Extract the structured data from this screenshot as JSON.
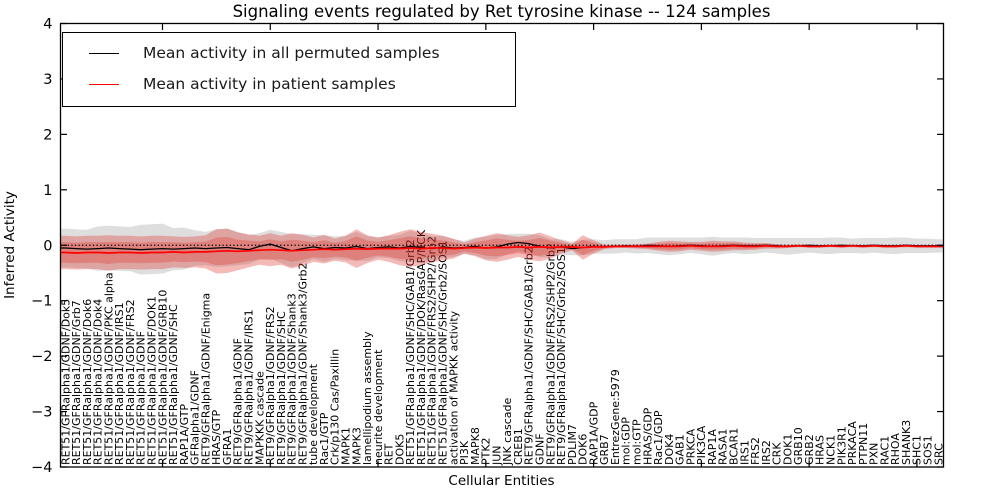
{
  "title": "Signaling events regulated by Ret tyrosine kinase -- 124 samples",
  "x_axis": {
    "label": "Cellular Entities"
  },
  "y_axis": {
    "label": "Inferred Activity",
    "tick_labels": [
      "4",
      "3",
      "2",
      "1",
      "0",
      "−1",
      "−2",
      "−3",
      "−4"
    ],
    "tick_values": [
      4,
      3,
      2,
      1,
      0,
      -1,
      -2,
      -3,
      -4
    ]
  },
  "legend": [
    {
      "label": "Mean activity in all permuted samples",
      "color": "#000000"
    },
    {
      "label": "Mean activity in patient samples",
      "color": "#ff0000"
    }
  ],
  "chart_data": {
    "type": "line",
    "title": "Signaling events regulated by Ret tyrosine kinase -- 124 samples",
    "xlabel": "Cellular Entities",
    "ylabel": "Inferred Activity",
    "ylim": [
      -4,
      4
    ],
    "grid": false,
    "legend_position": "upper left",
    "reference_line": {
      "y": 0,
      "style": "dotted",
      "color": "#000000"
    },
    "categories": [
      "RET51/GFRalpha1/GDNF/Dok5",
      "RET51/GFRalpha1/GDNF/Grb7",
      "RET51/GFRalpha1/GDNF/Dok6",
      "RET51/GFRalpha1/GDNF/Dok4",
      "RET51/GFRalpha1/GDNF/PKC alpha",
      "RET51/GFRalpha1/GDNF/IRS1",
      "RET51/GFRalpha1/GDNF/FRS2",
      "RET51/GFRalpha1/GDNF",
      "RET51/GFRalpha1/GDNF/DOK1",
      "RET51/GFRalpha1/GDNF/GRB10",
      "RET51/GFRalpha1/GDNF/SHC",
      "RAP1A/GTP",
      "GFRalpha1/GDNF",
      "RET9/GFRalpha1/GDNF/Enigma",
      "HRAS/GTP",
      "GFRA1",
      "RET9/GFRalpha1/GDNF",
      "RET9/GFRalpha1/GDNF/IRS1",
      "MAPKKK cascade",
      "RET9/GFRalpha1/GDNF/FRS2",
      "RET9/GFRalpha1/GDNF/SHC",
      "RET9/GFRalpha1/GDNF/Shank3",
      "RET9/GFRalpha1/GDNF/Shank3/Grb2",
      "tube development",
      "Rac1/GTP",
      "Crk/p130 Cas/Paxillin",
      "MAPK1",
      "MAPK3",
      "lamellipodium assembly",
      "neurite development",
      "RET",
      "DOK5",
      "RET51/GFRalpha1/GDNF/SHC/GAB1/Grb2",
      "RET51/GFRalpha1/GDNF/DOK/RasGAP/NCK",
      "RET51/GFRalpha1/GDNF/FRS2/SHP2/Grb2",
      "RET51/GFRalpha1/GDNF/SHC/Grb2/SOS1",
      "activation of MAPKK activity",
      "PI3K",
      "MAPK8",
      "PTK2",
      "JUN",
      "JNK cascade",
      "CREB1",
      "RET9/GFRalpha1/GDNF/SHC/GAB1/Grb2",
      "GDNF",
      "RET9/GFRalpha1/GDNF/FRS2/SHP2/Grb2",
      "RET9/GFRalpha1/GDNF/SHC/Grb2/SOS1",
      "PDLIM7",
      "DOK6",
      "RAP1A/GDP",
      "GRB7",
      "EntrezGene:5979",
      "mol:GDP",
      "mol:GTP",
      "HRAS/GDP",
      "Rac1/GDP",
      "DOK4",
      "GAB1",
      "PRKCA",
      "PIK3CA",
      "RAP1A",
      "RASA1",
      "BCAR1",
      "IRS1",
      "FRS2",
      "IRS2",
      "CRK",
      "DOK1",
      "GRB10",
      "GRB2",
      "HRAS",
      "NCK1",
      "PIK3R1",
      "PRKACA",
      "PTPN11",
      "PXN",
      "RAC1",
      "RHOA",
      "SHANK3",
      "SHC1",
      "SOS1",
      "SRC"
    ],
    "series": [
      {
        "name": "Mean activity in all permuted samples",
        "color": "#000000",
        "band_color": "rgba(0,0,0,0.13)",
        "values": [
          -0.05,
          -0.06,
          -0.07,
          -0.06,
          -0.05,
          -0.06,
          -0.07,
          -0.08,
          -0.07,
          -0.06,
          -0.07,
          -0.06,
          -0.05,
          -0.06,
          -0.05,
          -0.04,
          -0.06,
          -0.08,
          -0.02,
          0.02,
          -0.04,
          -0.1,
          -0.06,
          -0.03,
          -0.06,
          -0.04,
          -0.05,
          -0.02,
          -0.06,
          -0.04,
          -0.03,
          -0.05,
          -0.02,
          -0.04,
          -0.06,
          -0.03,
          -0.05,
          -0.04,
          -0.02,
          -0.05,
          -0.03,
          0.02,
          0.05,
          0.03,
          -0.02,
          -0.05,
          -0.03,
          -0.06,
          -0.04,
          -0.02,
          -0.03,
          -0.02,
          -0.01,
          -0.02,
          0.0,
          -0.01,
          -0.02,
          -0.01,
          0.0,
          -0.01,
          -0.02,
          -0.01,
          0.0,
          -0.01,
          -0.01,
          0.0,
          -0.01,
          -0.02,
          -0.01,
          0.0,
          -0.01,
          -0.01,
          0.0,
          -0.01,
          -0.01,
          0.0,
          -0.01,
          -0.01,
          0.0,
          -0.01,
          -0.01,
          -0.01
        ],
        "band": [
          0.35,
          0.35,
          0.35,
          0.4,
          0.4,
          0.4,
          0.4,
          0.45,
          0.45,
          0.45,
          0.38,
          0.38,
          0.32,
          0.3,
          0.34,
          0.34,
          0.3,
          0.26,
          0.24,
          0.26,
          0.28,
          0.3,
          0.26,
          0.22,
          0.24,
          0.2,
          0.22,
          0.26,
          0.22,
          0.18,
          0.2,
          0.24,
          0.28,
          0.26,
          0.22,
          0.2,
          0.16,
          0.12,
          0.16,
          0.2,
          0.22,
          0.18,
          0.16,
          0.18,
          0.2,
          0.16,
          0.14,
          0.12,
          0.14,
          0.13,
          0.12,
          0.13,
          0.12,
          0.13,
          0.14,
          0.15,
          0.16,
          0.15,
          0.14,
          0.15,
          0.17,
          0.15,
          0.14,
          0.15,
          0.14,
          0.13,
          0.14,
          0.15,
          0.14,
          0.13,
          0.14,
          0.15,
          0.14,
          0.13,
          0.14,
          0.13,
          0.14,
          0.15,
          0.14,
          0.13,
          0.13,
          0.12
        ]
      },
      {
        "name": "Mean activity in patient samples",
        "color": "#ff0000",
        "band_color": "rgba(222,45,38,0.33)",
        "band_inner_color": "rgba(222,45,38,0.30)",
        "band_inner_ratio": 0.62,
        "values": [
          -0.13,
          -0.14,
          -0.13,
          -0.13,
          -0.14,
          -0.13,
          -0.13,
          -0.14,
          -0.13,
          -0.13,
          -0.12,
          -0.13,
          -0.12,
          -0.12,
          -0.11,
          -0.1,
          -0.11,
          -0.1,
          -0.09,
          -0.08,
          -0.09,
          -0.1,
          -0.09,
          -0.08,
          -0.07,
          -0.08,
          -0.07,
          -0.06,
          -0.07,
          -0.06,
          -0.06,
          -0.06,
          -0.05,
          -0.06,
          -0.05,
          -0.05,
          -0.06,
          -0.05,
          -0.04,
          -0.05,
          -0.04,
          -0.04,
          -0.03,
          -0.04,
          -0.03,
          -0.04,
          -0.03,
          -0.03,
          -0.04,
          -0.03,
          -0.03,
          -0.02,
          -0.02,
          -0.02,
          -0.02,
          -0.02,
          -0.02,
          -0.02,
          -0.01,
          -0.02,
          -0.02,
          -0.02,
          -0.01,
          -0.02,
          -0.02,
          -0.01,
          -0.02,
          -0.02,
          -0.01,
          -0.02,
          -0.02,
          -0.01,
          -0.02,
          -0.01,
          -0.02,
          -0.01,
          -0.02,
          -0.02,
          -0.01,
          -0.02,
          -0.02,
          -0.02
        ],
        "band": [
          0.3,
          0.3,
          0.3,
          0.3,
          0.32,
          0.3,
          0.3,
          0.3,
          0.3,
          0.3,
          0.28,
          0.28,
          0.28,
          0.3,
          0.4,
          0.4,
          0.34,
          0.3,
          0.26,
          0.3,
          0.26,
          0.32,
          0.28,
          0.22,
          0.26,
          0.2,
          0.24,
          0.35,
          0.25,
          0.2,
          0.24,
          0.3,
          0.34,
          0.3,
          0.26,
          0.22,
          0.18,
          0.1,
          0.16,
          0.22,
          0.26,
          0.22,
          0.18,
          0.22,
          0.26,
          0.2,
          0.12,
          0.06,
          0.22,
          0.12,
          0.04,
          0.03,
          0.03,
          0.04,
          0.05,
          0.08,
          0.1,
          0.09,
          0.07,
          0.08,
          0.1,
          0.09,
          0.08,
          0.07,
          0.06,
          0.05,
          0.04,
          0.03,
          0.025,
          0.025,
          0.025,
          0.025,
          0.025,
          0.025,
          0.025,
          0.025,
          0.025,
          0.025,
          0.025,
          0.025,
          0.025,
          0.025
        ]
      }
    ]
  }
}
